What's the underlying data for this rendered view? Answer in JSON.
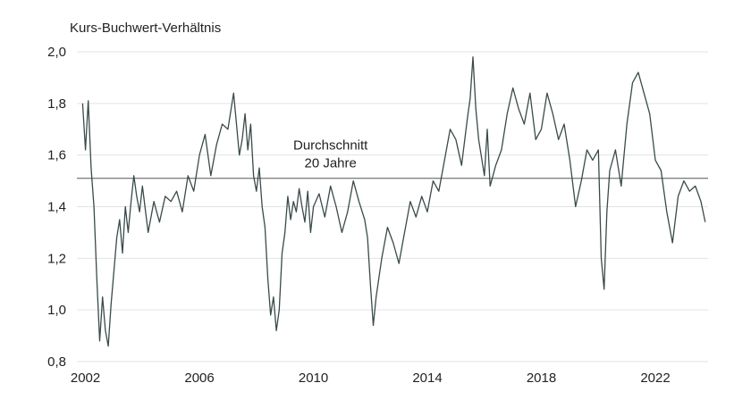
{
  "chart_data": {
    "type": "line",
    "title": "",
    "ylabel": "Kurs-Buchwert-Verhältnis",
    "xlabel": "",
    "xlim": [
      2001.7,
      2023.85
    ],
    "ylim": [
      0.8,
      2.0
    ],
    "yticks": [
      {
        "value": 0.8,
        "label": "0,8"
      },
      {
        "value": 1.0,
        "label": "1,0"
      },
      {
        "value": 1.2,
        "label": "1,2"
      },
      {
        "value": 1.4,
        "label": "1,4"
      },
      {
        "value": 1.6,
        "label": "1,6"
      },
      {
        "value": 1.8,
        "label": "1,8"
      },
      {
        "value": 2.0,
        "label": "2,0"
      }
    ],
    "xticks": [
      {
        "value": 2002,
        "label": "2002"
      },
      {
        "value": 2006,
        "label": "2006"
      },
      {
        "value": 2010,
        "label": "2010"
      },
      {
        "value": 2014,
        "label": "2014"
      },
      {
        "value": 2018,
        "label": "2018"
      },
      {
        "value": 2022,
        "label": "2022"
      }
    ],
    "grid": "horizontal",
    "line_color": "#3a4a4a",
    "reference_line": {
      "value": 1.51,
      "color": "#555555",
      "label_line1": "Durchschnitt",
      "label_line2": "20 Jahre"
    },
    "series": [
      {
        "x": [
          2001.9,
          2002.0,
          2002.1,
          2002.2,
          2002.3,
          2002.4,
          2002.5,
          2002.6,
          2002.7,
          2002.8,
          2002.9,
          2003.0,
          2003.1,
          2003.2,
          2003.3,
          2003.4,
          2003.5,
          2003.6,
          2003.7,
          2003.8,
          2003.9,
          2004.0,
          2004.2,
          2004.4,
          2004.6,
          2004.8,
          2005.0,
          2005.2,
          2005.4,
          2005.6,
          2005.8,
          2006.0,
          2006.2,
          2006.4,
          2006.6,
          2006.8,
          2007.0,
          2007.2,
          2007.4,
          2007.5,
          2007.6,
          2007.7,
          2007.8,
          2007.9,
          2008.0,
          2008.1,
          2008.2,
          2008.3,
          2008.4,
          2008.5,
          2008.6,
          2008.7,
          2008.8,
          2008.9,
          2009.0,
          2009.1,
          2009.2,
          2009.3,
          2009.4,
          2009.5,
          2009.6,
          2009.7,
          2009.8,
          2009.9,
          2010.0,
          2010.2,
          2010.4,
          2010.6,
          2010.8,
          2011.0,
          2011.2,
          2011.4,
          2011.6,
          2011.8,
          2011.9,
          2012.0,
          2012.1,
          2012.2,
          2012.4,
          2012.6,
          2012.8,
          2013.0,
          2013.2,
          2013.4,
          2013.6,
          2013.8,
          2014.0,
          2014.2,
          2014.4,
          2014.6,
          2014.8,
          2015.0,
          2015.2,
          2015.4,
          2015.5,
          2015.6,
          2015.7,
          2015.8,
          2016.0,
          2016.1,
          2016.2,
          2016.4,
          2016.6,
          2016.8,
          2017.0,
          2017.2,
          2017.4,
          2017.6,
          2017.8,
          2018.0,
          2018.2,
          2018.4,
          2018.6,
          2018.8,
          2019.0,
          2019.2,
          2019.4,
          2019.6,
          2019.8,
          2020.0,
          2020.1,
          2020.2,
          2020.3,
          2020.4,
          2020.6,
          2020.8,
          2021.0,
          2021.2,
          2021.4,
          2021.6,
          2021.8,
          2022.0,
          2022.2,
          2022.4,
          2022.6,
          2022.8,
          2023.0,
          2023.2,
          2023.4,
          2023.6,
          2023.75
        ],
        "y": [
          1.8,
          1.62,
          1.81,
          1.55,
          1.4,
          1.12,
          0.88,
          1.05,
          0.92,
          0.86,
          1.02,
          1.15,
          1.28,
          1.35,
          1.22,
          1.4,
          1.3,
          1.42,
          1.52,
          1.44,
          1.38,
          1.48,
          1.3,
          1.42,
          1.34,
          1.44,
          1.42,
          1.46,
          1.38,
          1.52,
          1.46,
          1.6,
          1.68,
          1.52,
          1.64,
          1.72,
          1.7,
          1.84,
          1.6,
          1.66,
          1.76,
          1.62,
          1.72,
          1.52,
          1.46,
          1.55,
          1.4,
          1.32,
          1.12,
          0.98,
          1.05,
          0.92,
          1.0,
          1.22,
          1.3,
          1.44,
          1.35,
          1.42,
          1.38,
          1.47,
          1.4,
          1.34,
          1.46,
          1.3,
          1.4,
          1.45,
          1.36,
          1.48,
          1.4,
          1.3,
          1.38,
          1.5,
          1.42,
          1.35,
          1.28,
          1.1,
          0.94,
          1.05,
          1.2,
          1.32,
          1.26,
          1.18,
          1.3,
          1.42,
          1.36,
          1.44,
          1.38,
          1.5,
          1.46,
          1.58,
          1.7,
          1.66,
          1.56,
          1.74,
          1.82,
          1.98,
          1.78,
          1.66,
          1.52,
          1.7,
          1.48,
          1.56,
          1.62,
          1.76,
          1.86,
          1.78,
          1.72,
          1.84,
          1.66,
          1.7,
          1.84,
          1.76,
          1.66,
          1.72,
          1.58,
          1.4,
          1.5,
          1.62,
          1.58,
          1.62,
          1.2,
          1.08,
          1.38,
          1.54,
          1.62,
          1.48,
          1.72,
          1.88,
          1.92,
          1.84,
          1.76,
          1.58,
          1.54,
          1.38,
          1.26,
          1.44,
          1.5,
          1.46,
          1.48,
          1.42,
          1.34
        ]
      }
    ]
  }
}
